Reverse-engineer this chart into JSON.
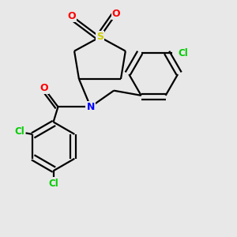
{
  "background_color": "#e8e8e8",
  "bond_color": "#000000",
  "atom_colors": {
    "O": "#ff0000",
    "S": "#cccc00",
    "N": "#0000ff",
    "Cl": "#00cc00",
    "C": "#000000"
  },
  "figsize": [
    3.0,
    3.0
  ],
  "dpi": 100,
  "lw": 1.6
}
